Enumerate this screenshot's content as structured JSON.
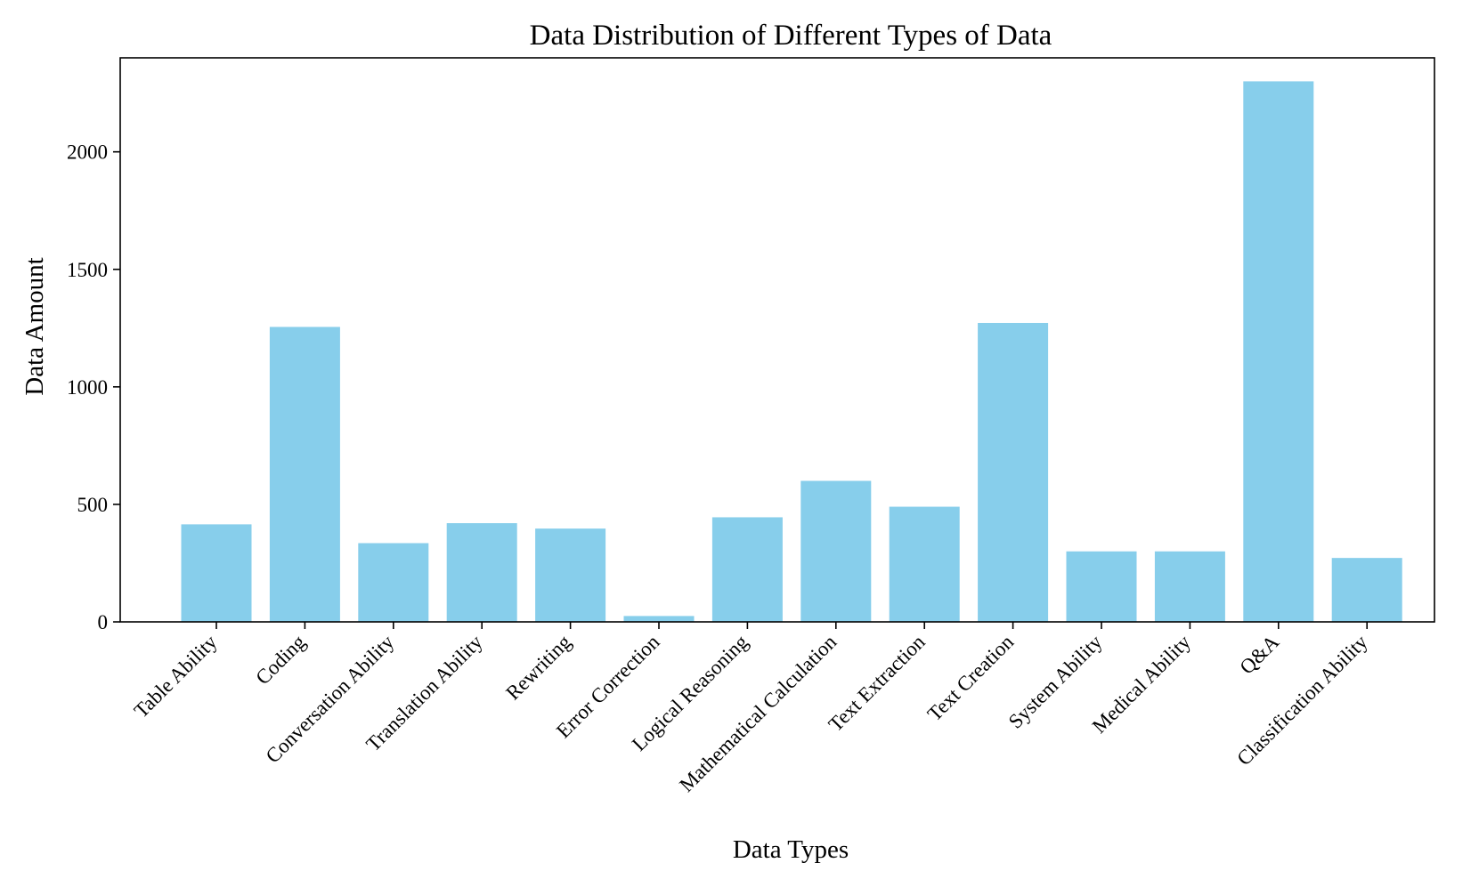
{
  "chart_data": {
    "type": "bar",
    "title": "Data Distribution of Different Types of Data",
    "xlabel": "Data Types",
    "ylabel": "Data Amount",
    "categories": [
      "Table Ability",
      "Coding",
      "Conversation Ability",
      "Translation Ability",
      "Rewriting",
      "Error Correction",
      "Logical Reasoning",
      "Mathematical Calculation",
      "Text Extraction",
      "Text Creation",
      "System Ability",
      "Medical Ability",
      "Q&A",
      "Classification Ability"
    ],
    "values": [
      415,
      1255,
      335,
      420,
      397,
      25,
      445,
      600,
      490,
      1272,
      300,
      300,
      2300,
      272
    ],
    "ylim": [
      0,
      2400
    ],
    "yticks": [
      0,
      500,
      1000,
      1500,
      2000
    ],
    "grid": false,
    "bar_color": "#87CEEB"
  }
}
